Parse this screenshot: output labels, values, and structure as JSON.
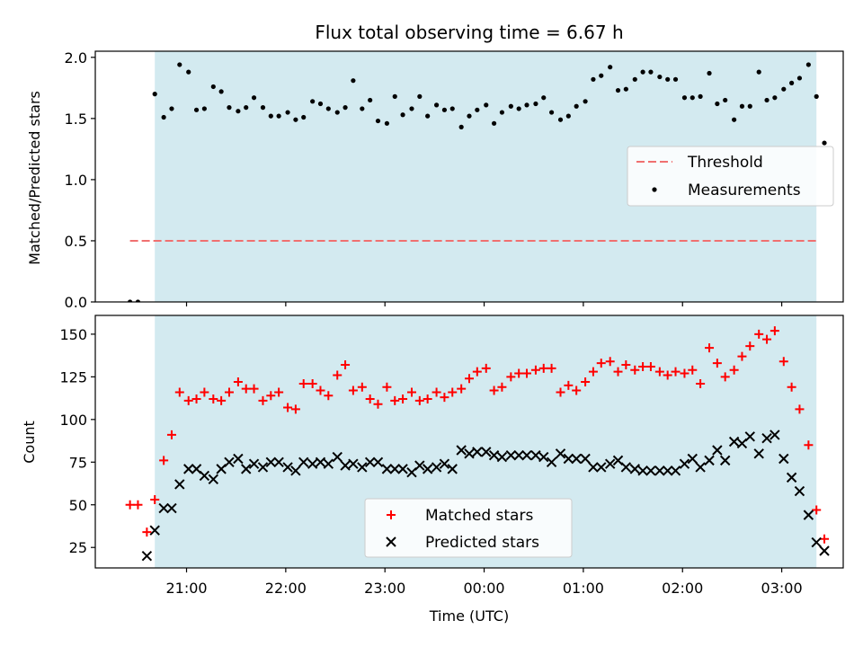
{
  "chart_data": [
    {
      "type": "scatter",
      "title": "Flux total observing time = 6.67 h",
      "xlabel": "",
      "ylabel": "Matched/Predicted stars",
      "x_unit": "hours UTC, continuing past 24 after midnight",
      "xlim": [
        20.08,
        27.62
      ],
      "ylim": [
        0.0,
        2.05
      ],
      "yticks": [
        "0.0",
        "0.5",
        "1.0",
        "1.5",
        "2.0"
      ],
      "observing_window": [
        20.68,
        27.35
      ],
      "observing_window_color": "#d3eaf0",
      "threshold": {
        "name": "Threshold",
        "value": 0.5,
        "x_range": [
          20.43,
          27.35
        ],
        "color": "#f07070"
      },
      "legend_position": "center-right",
      "series": [
        {
          "name": "Measurements",
          "color": "#000000",
          "marker": "dot",
          "x": [
            20.43,
            20.51,
            20.68,
            20.77,
            20.85,
            20.93,
            21.02,
            21.1,
            21.18,
            21.27,
            21.35,
            21.43,
            21.52,
            21.6,
            21.68,
            21.77,
            21.85,
            21.93,
            22.02,
            22.1,
            22.18,
            22.27,
            22.35,
            22.43,
            22.52,
            22.6,
            22.68,
            22.77,
            22.85,
            22.93,
            23.02,
            23.1,
            23.18,
            23.27,
            23.35,
            23.43,
            23.52,
            23.6,
            23.68,
            23.77,
            23.85,
            23.93,
            24.02,
            24.1,
            24.18,
            24.27,
            24.35,
            24.43,
            24.52,
            24.6,
            24.68,
            24.77,
            24.85,
            24.93,
            25.02,
            25.1,
            25.18,
            25.27,
            25.35,
            25.43,
            25.52,
            25.6,
            25.68,
            25.77,
            25.85,
            25.93,
            26.02,
            26.1,
            26.18,
            26.27,
            26.35,
            26.43,
            26.52,
            26.6,
            26.68,
            26.77,
            26.85,
            26.93,
            27.02,
            27.1,
            27.18,
            27.27,
            27.35,
            27.43
          ],
          "y": [
            0.0,
            0.0,
            1.7,
            1.51,
            1.58,
            1.94,
            1.88,
            1.57,
            1.58,
            1.76,
            1.72,
            1.59,
            1.56,
            1.59,
            1.67,
            1.59,
            1.52,
            1.52,
            1.55,
            1.49,
            1.51,
            1.64,
            1.62,
            1.58,
            1.55,
            1.59,
            1.81,
            1.58,
            1.65,
            1.48,
            1.46,
            1.68,
            1.53,
            1.58,
            1.68,
            1.52,
            1.61,
            1.57,
            1.58,
            1.43,
            1.52,
            1.57,
            1.61,
            1.46,
            1.55,
            1.6,
            1.58,
            1.61,
            1.62,
            1.67,
            1.55,
            1.49,
            1.52,
            1.6,
            1.64,
            1.82,
            1.85,
            1.92,
            1.73,
            1.74,
            1.82,
            1.88,
            1.88,
            1.84,
            1.82,
            1.82,
            1.67,
            1.67,
            1.68,
            1.87,
            1.62,
            1.65,
            1.49,
            1.6,
            1.6,
            1.88,
            1.65,
            1.67,
            1.74,
            1.79,
            1.83,
            1.94,
            1.68,
            1.3
          ]
        }
      ]
    },
    {
      "type": "scatter",
      "title": "",
      "xlabel": "Time (UTC)",
      "ylabel": "Count",
      "x_unit": "hours UTC, continuing past 24 after midnight",
      "xlim": [
        20.08,
        27.62
      ],
      "ylim": [
        13,
        161
      ],
      "yticks": [
        "25",
        "50",
        "75",
        "100",
        "125",
        "150"
      ],
      "xticks": [
        {
          "value": 21,
          "label": "21:00"
        },
        {
          "value": 22,
          "label": "22:00"
        },
        {
          "value": 23,
          "label": "23:00"
        },
        {
          "value": 24,
          "label": "00:00"
        },
        {
          "value": 25,
          "label": "01:00"
        },
        {
          "value": 26,
          "label": "02:00"
        },
        {
          "value": 27,
          "label": "03:00"
        }
      ],
      "observing_window": [
        20.68,
        27.35
      ],
      "observing_window_color": "#d3eaf0",
      "legend_position": "lower-center",
      "series": [
        {
          "name": "Matched stars",
          "color": "#ff0000",
          "marker": "plus",
          "x": [
            20.43,
            20.51,
            20.6,
            20.68,
            20.77,
            20.85,
            20.93,
            21.02,
            21.1,
            21.18,
            21.27,
            21.35,
            21.43,
            21.52,
            21.6,
            21.68,
            21.77,
            21.85,
            21.93,
            22.02,
            22.1,
            22.18,
            22.27,
            22.35,
            22.43,
            22.52,
            22.6,
            22.68,
            22.77,
            22.85,
            22.93,
            23.02,
            23.1,
            23.18,
            23.27,
            23.35,
            23.43,
            23.52,
            23.6,
            23.68,
            23.77,
            23.85,
            23.93,
            24.02,
            24.1,
            24.18,
            24.27,
            24.35,
            24.43,
            24.52,
            24.6,
            24.68,
            24.77,
            24.85,
            24.93,
            25.02,
            25.1,
            25.18,
            25.27,
            25.35,
            25.43,
            25.52,
            25.6,
            25.68,
            25.77,
            25.85,
            25.93,
            26.02,
            26.1,
            26.18,
            26.27,
            26.35,
            26.43,
            26.52,
            26.6,
            26.68,
            26.77,
            26.85,
            26.93,
            27.02,
            27.1,
            27.18,
            27.27,
            27.35,
            27.43
          ],
          "y": [
            50,
            50,
            34,
            53,
            76,
            91,
            116,
            111,
            112,
            116,
            112,
            111,
            116,
            122,
            118,
            118,
            111,
            114,
            116,
            107,
            106,
            121,
            121,
            117,
            114,
            126,
            132,
            117,
            119,
            112,
            109,
            119,
            111,
            112,
            116,
            111,
            112,
            116,
            113,
            116,
            118,
            124,
            128,
            130,
            117,
            119,
            125,
            127,
            127,
            129,
            130,
            130,
            116,
            120,
            117,
            122,
            128,
            133,
            134,
            128,
            132,
            129,
            131,
            131,
            128,
            126,
            128,
            127,
            129,
            121,
            142,
            133,
            125,
            129,
            137,
            143,
            150,
            147,
            152,
            134,
            119,
            106,
            85,
            47,
            30
          ]
        },
        {
          "name": "Predicted stars",
          "color": "#000000",
          "marker": "x",
          "x": [
            20.6,
            20.68,
            20.77,
            20.85,
            20.93,
            21.02,
            21.1,
            21.18,
            21.27,
            21.35,
            21.43,
            21.52,
            21.6,
            21.68,
            21.77,
            21.85,
            21.93,
            22.02,
            22.1,
            22.18,
            22.27,
            22.35,
            22.43,
            22.52,
            22.6,
            22.68,
            22.77,
            22.85,
            22.93,
            23.02,
            23.1,
            23.18,
            23.27,
            23.35,
            23.43,
            23.52,
            23.6,
            23.68,
            23.77,
            23.85,
            23.93,
            24.02,
            24.1,
            24.18,
            24.27,
            24.35,
            24.43,
            24.52,
            24.6,
            24.68,
            24.77,
            24.85,
            24.93,
            25.02,
            25.1,
            25.18,
            25.27,
            25.35,
            25.43,
            25.52,
            25.6,
            25.68,
            25.77,
            25.85,
            25.93,
            26.02,
            26.1,
            26.18,
            26.27,
            26.35,
            26.43,
            26.52,
            26.6,
            26.68,
            26.77,
            26.85,
            26.93,
            27.02,
            27.1,
            27.18,
            27.27,
            27.35,
            27.43
          ],
          "y": [
            20,
            35,
            48,
            48,
            62,
            71,
            71,
            67,
            65,
            71,
            75,
            77,
            71,
            74,
            72,
            75,
            75,
            72,
            70,
            75,
            74,
            75,
            74,
            78,
            73,
            74,
            72,
            75,
            75,
            71,
            71,
            71,
            69,
            73,
            71,
            72,
            74,
            71,
            82,
            80,
            81,
            81,
            79,
            78,
            79,
            79,
            79,
            79,
            78,
            75,
            80,
            77,
            77,
            77,
            72,
            72,
            74,
            76,
            72,
            71,
            70,
            70,
            70,
            70,
            70,
            74,
            77,
            72,
            76,
            82,
            76,
            87,
            86,
            90,
            80,
            89,
            91,
            77,
            66,
            58,
            44,
            28,
            23
          ]
        }
      ]
    }
  ]
}
